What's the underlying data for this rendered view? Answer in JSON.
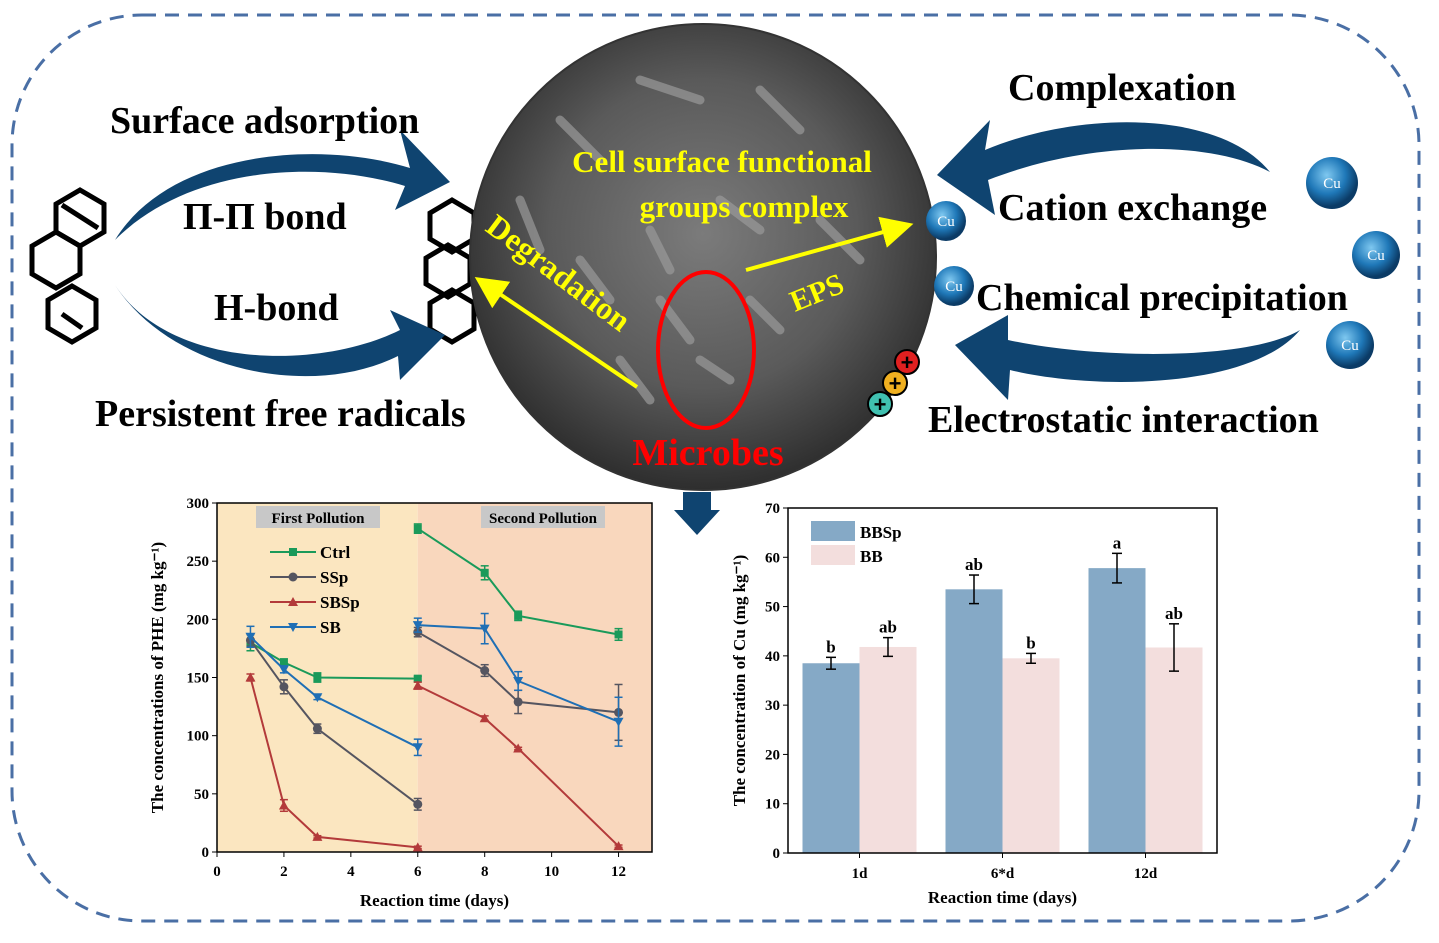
{
  "labels": {
    "surface_adsorption": "Surface adsorption",
    "pi_pi_bond": "Π-Π bond",
    "h_bond": "H-bond",
    "persistent_free_radicals": "Persistent free radicals",
    "complexation": "Complexation",
    "cation_exchange": "Cation exchange",
    "chemical_precipitation": "Chemical precipitation",
    "electrostatic_interaction": "Electrostatic interaction",
    "cell_surface_1": "Cell surface functional",
    "cell_surface_2": "groups complex",
    "degradation": "Degradation",
    "eps": "EPS",
    "microbes": "Microbes",
    "cu": "Cu"
  },
  "colors": {
    "arrow": "#0f4470",
    "yellow": "#ffff00",
    "red": "#ff0000",
    "border": "#4a6fa5"
  },
  "chart_data": [
    {
      "type": "line",
      "title": "",
      "xlabel": "Reaction time (days)",
      "ylabel": "The concentrations of PHE (mg kg⁻¹)",
      "xlim": [
        0,
        13
      ],
      "ylim": [
        0,
        300
      ],
      "xticks": [
        0,
        2,
        4,
        6,
        8,
        10,
        12
      ],
      "yticks": [
        0,
        50,
        100,
        150,
        200,
        250,
        300
      ],
      "regions": [
        {
          "label": "First Pollution",
          "from": 0,
          "to": 6,
          "color": "#fbe6c0"
        },
        {
          "label": "Second Pollution",
          "from": 6,
          "to": 13,
          "color": "#f9d7bd"
        }
      ],
      "legend": "top-left",
      "series": [
        {
          "name": "Ctrl",
          "color": "#1a9a5a",
          "marker": "square",
          "segments": [
            [
              [
                1,
                180,
                7
              ],
              [
                2,
                163,
                3
              ],
              [
                3,
                150,
                4
              ],
              [
                6,
                149,
                2
              ]
            ],
            [
              [
                6,
                278,
                4
              ],
              [
                8,
                240,
                6
              ],
              [
                9,
                203,
                4
              ],
              [
                12,
                187,
                5
              ]
            ]
          ]
        },
        {
          "name": "SSp",
          "color": "#555560",
          "marker": "circle",
          "segments": [
            [
              [
                1,
                182,
                5
              ],
              [
                2,
                142,
                6
              ],
              [
                3,
                106,
                4
              ],
              [
                6,
                41,
                5
              ]
            ],
            [
              [
                6,
                189,
                4
              ],
              [
                8,
                156,
                5
              ],
              [
                9,
                129,
                10
              ],
              [
                12,
                120,
                24
              ]
            ]
          ]
        },
        {
          "name": "SBSp",
          "color": "#b33a3a",
          "marker": "triangle-up",
          "segments": [
            [
              [
                1,
                150,
                3
              ],
              [
                2,
                40,
                5
              ],
              [
                3,
                13,
                1
              ],
              [
                6,
                4,
                1
              ]
            ],
            [
              [
                6,
                143,
                3
              ],
              [
                8,
                115,
                2
              ],
              [
                9,
                89,
                1
              ],
              [
                12,
                5,
                1
              ]
            ]
          ]
        },
        {
          "name": "SB",
          "color": "#1f6fb5",
          "marker": "triangle-down",
          "segments": [
            [
              [
                1,
                185,
                9
              ],
              [
                2,
                157,
                3
              ],
              [
                3,
                133,
                2
              ],
              [
                6,
                90,
                7
              ]
            ],
            [
              [
                6,
                195,
                6
              ],
              [
                8,
                192,
                13
              ],
              [
                9,
                147,
                8
              ],
              [
                12,
                112,
                21
              ]
            ]
          ]
        }
      ]
    },
    {
      "type": "bar",
      "title": "",
      "xlabel": "Reaction time (days)",
      "ylabel": "The concentration of Cu (mg kg⁻¹)",
      "ylim": [
        0,
        70
      ],
      "yticks": [
        0,
        10,
        20,
        30,
        40,
        50,
        60,
        70
      ],
      "categories": [
        "1d",
        "6*d",
        "12d"
      ],
      "legend": "top-left",
      "series": [
        {
          "name": "BBSp",
          "color": "#85a9c6",
          "values": [
            38.5,
            53.5,
            57.8
          ],
          "errors": [
            1.2,
            2.9,
            3.0
          ],
          "letters": [
            "b",
            "ab",
            "a"
          ]
        },
        {
          "name": "BB",
          "color": "#f3dedd",
          "values": [
            41.8,
            39.5,
            41.7
          ],
          "errors": [
            1.9,
            1.0,
            4.8
          ],
          "letters": [
            "ab",
            "b",
            "ab"
          ]
        }
      ]
    }
  ]
}
